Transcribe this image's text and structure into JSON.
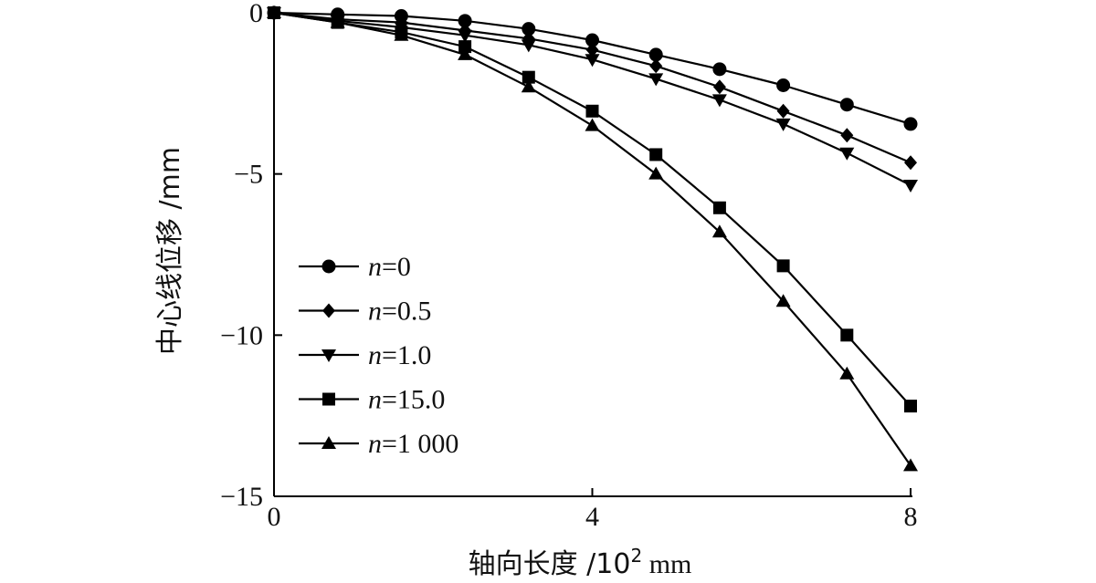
{
  "chart_data": {
    "type": "line",
    "title": "",
    "xlabel": {
      "main": "轴向长度 /10",
      "sup": "2",
      "unit": " mm"
    },
    "ylabel": "中心线位移 /mm",
    "xlim": [
      0,
      8
    ],
    "ylim": [
      -15,
      0
    ],
    "xticks": [
      0,
      4,
      8
    ],
    "xtick_labels": [
      "0",
      "4",
      "8"
    ],
    "yticks": [
      0,
      -5,
      -10,
      -15
    ],
    "ytick_labels": [
      "0",
      "−5",
      "−10",
      "−15"
    ],
    "grid": false,
    "legend_position": "lower-left",
    "color": "#000000",
    "x": [
      0,
      0.8,
      1.6,
      2.4,
      3.2,
      4.0,
      4.8,
      5.6,
      6.4,
      7.2,
      8.0
    ],
    "series": [
      {
        "name_var": "n",
        "name_val": "=0",
        "marker": "circle",
        "x": [
          0,
          0.8,
          1.6,
          2.4,
          3.2,
          4.0,
          4.8,
          5.6,
          6.4,
          7.2,
          8.0
        ],
        "values": [
          0,
          -0.05,
          -0.1,
          -0.25,
          -0.5,
          -0.85,
          -1.3,
          -1.75,
          -2.25,
          -2.85,
          -3.45
        ]
      },
      {
        "name_var": "n",
        "name_val": "=0.5",
        "marker": "diamond",
        "x": [
          0,
          0.8,
          1.6,
          2.4,
          3.2,
          4.0,
          4.8,
          5.6,
          6.4,
          7.2,
          8.0
        ],
        "values": [
          0,
          -0.2,
          -0.3,
          -0.55,
          -0.8,
          -1.15,
          -1.65,
          -2.3,
          -3.05,
          -3.8,
          -4.65
        ]
      },
      {
        "name_var": "n",
        "name_val": "=1.0",
        "marker": "triangle-down",
        "x": [
          0,
          0.8,
          1.6,
          2.4,
          3.2,
          4.0,
          4.8,
          5.6,
          6.4,
          7.2,
          8.0
        ],
        "values": [
          0,
          -0.25,
          -0.45,
          -0.7,
          -1.0,
          -1.45,
          -2.05,
          -2.7,
          -3.45,
          -4.35,
          -5.35
        ]
      },
      {
        "name_var": "n",
        "name_val": "=15.0",
        "marker": "square",
        "x": [
          0,
          0.8,
          1.6,
          2.4,
          3.2,
          4.0,
          4.8,
          5.6,
          6.4,
          7.2,
          8.0
        ],
        "values": [
          0,
          -0.3,
          -0.6,
          -1.05,
          -2.0,
          -3.05,
          -4.4,
          -6.05,
          -7.85,
          -10.0,
          -12.2
        ]
      },
      {
        "name_var": "n",
        "name_val": "=1 000",
        "marker": "triangle-up",
        "x": [
          0,
          0.8,
          1.6,
          2.4,
          3.2,
          4.0,
          4.8,
          5.6,
          6.4,
          7.2,
          8.0
        ],
        "values": [
          0,
          -0.3,
          -0.7,
          -1.3,
          -2.3,
          -3.5,
          -5.0,
          -6.8,
          -8.95,
          -11.2,
          -14.05
        ]
      }
    ]
  }
}
